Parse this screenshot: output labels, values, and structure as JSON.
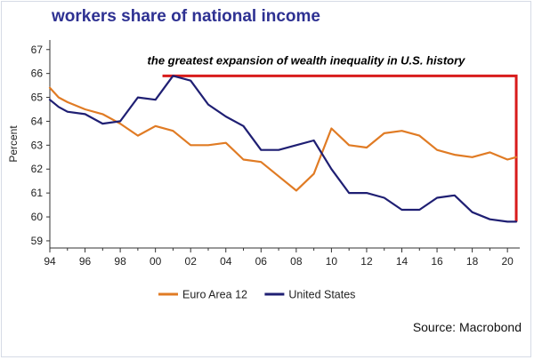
{
  "title": "workers share of national income",
  "source": "Source: Macrobond",
  "colors": {
    "title": "#2e3192",
    "euro": "#e07b24",
    "us": "#1f1f73",
    "bracket": "#d81c1c"
  },
  "chart_data": {
    "type": "line",
    "ylabel": "Percent",
    "xlabel": "",
    "xlim": [
      1994,
      2020.7
    ],
    "ylim": [
      58.7,
      67.4
    ],
    "x_ticks": [
      1994,
      1996,
      1998,
      2000,
      2002,
      2004,
      2006,
      2008,
      2010,
      2012,
      2014,
      2016,
      2018,
      2020
    ],
    "x_tick_labels": [
      "94",
      "96",
      "98",
      "00",
      "02",
      "04",
      "06",
      "08",
      "10",
      "12",
      "14",
      "16",
      "18",
      "20"
    ],
    "y_ticks": [
      59,
      60,
      61,
      62,
      63,
      64,
      65,
      66,
      67
    ],
    "y_tick_labels": [
      "59",
      "60",
      "61",
      "62",
      "63",
      "64",
      "65",
      "66",
      "67"
    ],
    "grid": false,
    "legend_position": "bottom-center",
    "annotation": {
      "text": "the greatest expansion of wealth inequality in U.S. history",
      "x_start": 2000.4,
      "x_end": 2020.5,
      "y_top": 65.9,
      "y_bottom": 59.8
    },
    "series": [
      {
        "name": "Euro Area 12",
        "color": "#e07b24",
        "x": [
          1994,
          1994.5,
          1995,
          1996,
          1997,
          1998,
          1999,
          2000,
          2001,
          2002,
          2003,
          2004,
          2005,
          2006,
          2007,
          2008,
          2009,
          2010,
          2011,
          2012,
          2013,
          2014,
          2015,
          2016,
          2017,
          2018,
          2019,
          2020,
          2020.5
        ],
        "values": [
          65.4,
          65.0,
          64.8,
          64.5,
          64.3,
          63.9,
          63.4,
          63.8,
          63.6,
          63.0,
          63.0,
          63.1,
          62.4,
          62.3,
          61.7,
          61.1,
          61.8,
          63.7,
          63.0,
          62.9,
          63.5,
          63.6,
          63.4,
          62.8,
          62.6,
          62.5,
          62.7,
          62.4,
          62.5
        ]
      },
      {
        "name": "United States",
        "color": "#1f1f73",
        "x": [
          1994,
          1994.5,
          1995,
          1996,
          1997,
          1998,
          1999,
          2000,
          2001,
          2002,
          2003,
          2004,
          2005,
          2006,
          2007,
          2008,
          2009,
          2010,
          2011,
          2012,
          2013,
          2014,
          2015,
          2016,
          2017,
          2018,
          2019,
          2020,
          2020.5
        ],
        "values": [
          64.9,
          64.6,
          64.4,
          64.3,
          63.9,
          64.0,
          65.0,
          64.9,
          65.9,
          65.7,
          64.7,
          64.2,
          63.8,
          62.8,
          62.8,
          63.0,
          63.2,
          62.0,
          61.0,
          61.0,
          60.8,
          60.3,
          60.3,
          60.8,
          60.9,
          60.2,
          59.9,
          59.8,
          59.8
        ]
      }
    ]
  }
}
